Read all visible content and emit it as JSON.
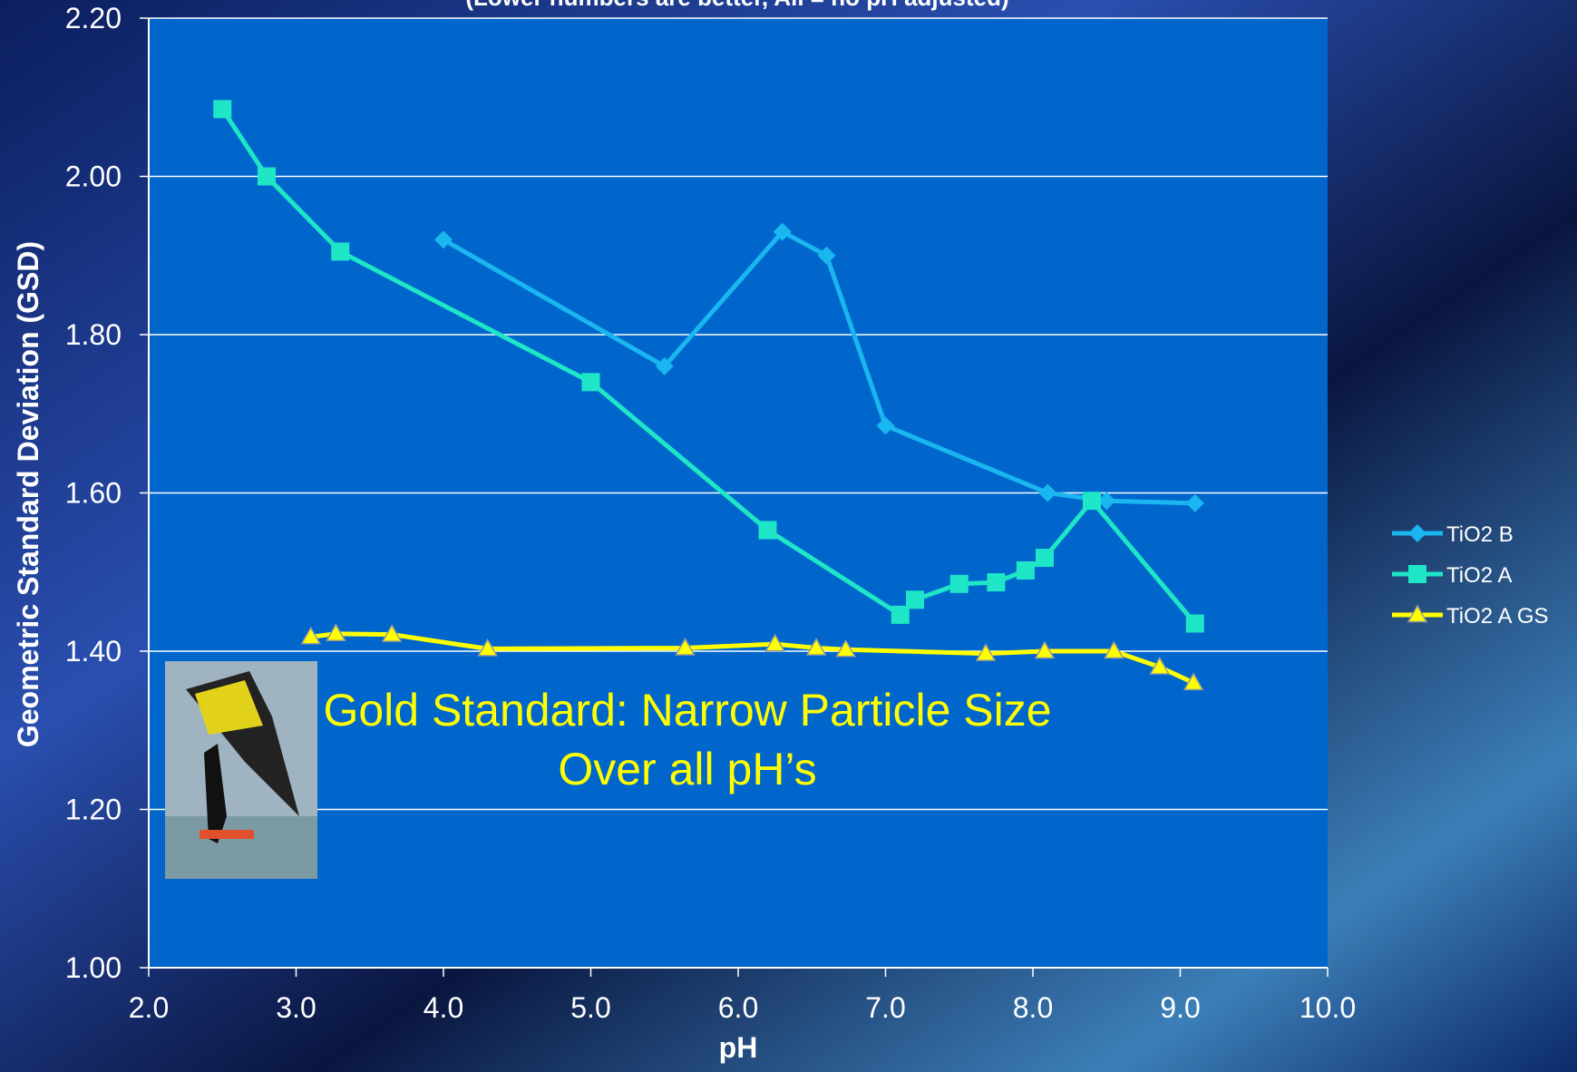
{
  "chart_data": {
    "type": "line",
    "subtitle": "(Lower numbers are better, All = no pH adjusted)",
    "xlabel": "pH",
    "ylabel": "Geometric Standard Deviation (GSD)",
    "annotation": [
      "Gold Standard:  Narrow Particle Size",
      "Over all pH’s"
    ],
    "xlim": [
      2,
      10
    ],
    "ylim": [
      1,
      2.2
    ],
    "xticks": [
      {
        "value": 2,
        "label": "2.0"
      },
      {
        "value": 3,
        "label": "3.0"
      },
      {
        "value": 4,
        "label": "4.0"
      },
      {
        "value": 5,
        "label": "5.0"
      },
      {
        "value": 6,
        "label": "6.0"
      },
      {
        "value": 7,
        "label": "7.0"
      },
      {
        "value": 8,
        "label": "8.0"
      },
      {
        "value": 9,
        "label": "9.0"
      },
      {
        "value": 10,
        "label": "10.0"
      }
    ],
    "yticks": [
      {
        "value": 1,
        "label": "1.00"
      },
      {
        "value": 1.2,
        "label": "1.20"
      },
      {
        "value": 1.4,
        "label": "1.40"
      },
      {
        "value": 1.6,
        "label": "1.60"
      },
      {
        "value": 1.8,
        "label": "1.80"
      },
      {
        "value": 2,
        "label": "2.00"
      },
      {
        "value": 2.2,
        "label": "2.20"
      }
    ],
    "grid": true,
    "legend": "right",
    "series": [
      {
        "name": "TiO2 B",
        "color": "#19b6ef",
        "marker": "diamond",
        "x": [
          4.0,
          5.5,
          6.3,
          6.6,
          7.0,
          8.1,
          8.5,
          9.1
        ],
        "values": [
          1.92,
          1.76,
          1.93,
          1.9,
          1.685,
          1.6,
          1.59,
          1.587
        ]
      },
      {
        "name": "TiO2 A",
        "color": "#1ee6c6",
        "marker": "square",
        "x": [
          2.5,
          2.8,
          3.3,
          5.0,
          6.2,
          7.1,
          7.2,
          7.5,
          7.75,
          7.95,
          8.08,
          8.4,
          9.1
        ],
        "values": [
          2.085,
          2.0,
          1.905,
          1.74,
          1.553,
          1.446,
          1.465,
          1.485,
          1.487,
          1.502,
          1.518,
          1.59,
          1.435
        ]
      },
      {
        "name": "TiO2 A GS",
        "color": "#ffff00",
        "marker": "triangle",
        "x": [
          3.1,
          3.27,
          3.65,
          4.3,
          5.64,
          6.25,
          6.53,
          6.73,
          7.68,
          8.08,
          8.55,
          8.86,
          9.09
        ],
        "values": [
          1.418,
          1.422,
          1.421,
          1.403,
          1.404,
          1.409,
          1.404,
          1.402,
          1.397,
          1.4,
          1.4,
          1.38,
          1.36
        ]
      }
    ]
  }
}
